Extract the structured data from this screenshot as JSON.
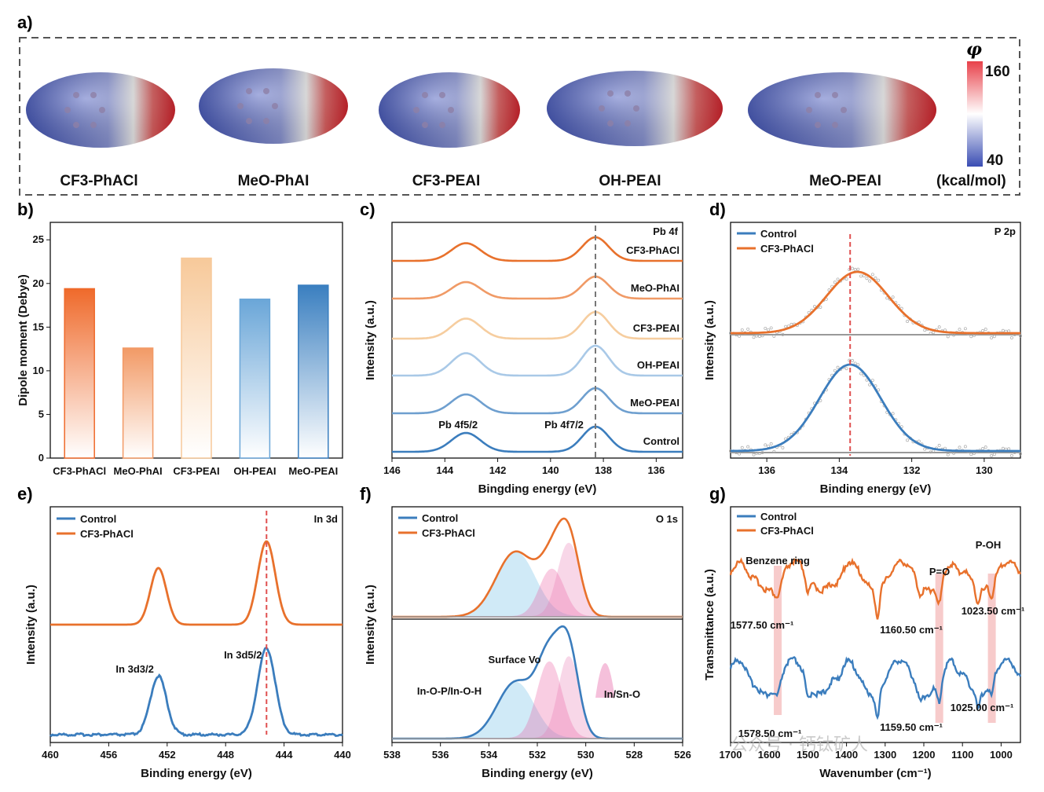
{
  "panel_labels": {
    "a": "a)",
    "b": "b)",
    "c": "c)",
    "d": "d)",
    "e": "e)",
    "f": "f)",
    "g": "g)"
  },
  "panel_a": {
    "molecules": [
      "CF3-PhACl",
      "MeO-PhAI",
      "CF3-PEAI",
      "OH-PEAI",
      "MeO-PEAI"
    ],
    "colorbar": {
      "symbol": "φ",
      "max": "160",
      "min": "40",
      "unit": "(kcal/mol)",
      "colors": [
        "#e8414a",
        "#ffffff",
        "#3a4db3"
      ]
    }
  },
  "watermark": "公众号 · 钙钛矿人",
  "chart_data": [
    {
      "id": "b",
      "type": "bar",
      "categories": [
        "CF3-PhACl",
        "MeO-PhAI",
        "CF3-PEAI",
        "OH-PEAI",
        "MeO-PEAI"
      ],
      "values": [
        19.4,
        12.6,
        22.9,
        18.2,
        19.8
      ],
      "colors": [
        "#ef6a2b",
        "#f29a66",
        "#f7c99a",
        "#6aa6d8",
        "#3a7fc0"
      ],
      "xlabel": "",
      "ylabel": "Dipole moment (Debye)",
      "ylim": [
        0,
        27
      ],
      "yticks": [
        "0",
        "5",
        "10",
        "15",
        "20",
        "25"
      ]
    },
    {
      "id": "c",
      "type": "line",
      "title": "Pb 4f",
      "xlabel": "Bingding energy (eV)",
      "ylabel": "Intensity (a.u.)",
      "xlim": [
        146,
        135
      ],
      "xticks": [
        "146",
        "144",
        "142",
        "140",
        "138",
        "136"
      ],
      "reference_line_x": 138.3,
      "peaks": [
        {
          "position": 143.2,
          "label": "Pb 4f5/2"
        },
        {
          "position": 138.3,
          "label": "Pb 4f7/2"
        }
      ],
      "series": [
        {
          "name": "CF3-PhACl",
          "color": "#e8712c"
        },
        {
          "name": "MeO-PhAI",
          "color": "#f09a66"
        },
        {
          "name": "CF3-PEAI",
          "color": "#f6cd9f"
        },
        {
          "name": "OH-PEAI",
          "color": "#a9c9e7"
        },
        {
          "name": "MeO-PEAI",
          "color": "#6e9fcf"
        },
        {
          "name": "Control",
          "color": "#3b7dbd"
        }
      ]
    },
    {
      "id": "d",
      "type": "line",
      "title": "P 2p",
      "xlabel": "Binding energy (eV)",
      "ylabel": "Intensity (a.u.)",
      "xlim": [
        137,
        129
      ],
      "xticks": [
        "136",
        "134",
        "132",
        "130"
      ],
      "reference_line_x": 133.7,
      "series": [
        {
          "name": "Control",
          "color": "#3b7dbd",
          "peak": 133.7
        },
        {
          "name": "CF3-PhACl",
          "color": "#e8712c",
          "peak": 133.5
        }
      ]
    },
    {
      "id": "e",
      "type": "line",
      "title": "In 3d",
      "xlabel": "Binding energy (eV)",
      "ylabel": "Intensity (a.u.)",
      "xlim": [
        460,
        440
      ],
      "xticks": [
        "460",
        "456",
        "452",
        "448",
        "444",
        "440"
      ],
      "reference_line_x": 445.2,
      "peaks": [
        {
          "position": 452.6,
          "label": "In 3d3/2"
        },
        {
          "position": 445.2,
          "label": "In 3d5/2"
        }
      ],
      "series": [
        {
          "name": "Control",
          "color": "#3b7dbd"
        },
        {
          "name": "CF3-PhACl",
          "color": "#e8712c"
        }
      ]
    },
    {
      "id": "f",
      "type": "line",
      "title": "O 1s",
      "xlabel": "Binding energy (eV)",
      "ylabel": "Intensity (a.u.)",
      "xlim": [
        538,
        526
      ],
      "xticks": [
        "538",
        "536",
        "534",
        "532",
        "530",
        "528",
        "526"
      ],
      "components": [
        {
          "name": "In-O-P/In-O-H",
          "center": 532.9,
          "color": "#5ab5e6"
        },
        {
          "name": "Surface Vo",
          "center": 531.5,
          "color": "#ea4f98"
        },
        {
          "name": "In/Sn-O",
          "center": 530.7,
          "color": "#e874b0"
        }
      ],
      "series": [
        {
          "name": "Control",
          "color": "#3b7dbd"
        },
        {
          "name": "CF3-PhACl",
          "color": "#e8712c"
        }
      ]
    },
    {
      "id": "g",
      "type": "line",
      "xlabel": "Wavenumber (cm⁻¹)",
      "ylabel": "Transmittance (a.u.)",
      "xlim": [
        1700,
        950
      ],
      "xticks": [
        "1700",
        "1600",
        "1500",
        "1400",
        "1300",
        "1200",
        "1100",
        "1000"
      ],
      "bands": [
        {
          "name": "Benzene ring",
          "center": 1578
        },
        {
          "name": "P=O",
          "center": 1160
        },
        {
          "name": "P-OH",
          "center": 1024
        }
      ],
      "annotations": [
        "1577.50 cm⁻¹",
        "1160.50 cm⁻¹",
        "1023.50 cm⁻¹",
        "1578.50 cm⁻¹",
        "1159.50 cm⁻¹",
        "1025.00 cm⁻¹"
      ],
      "series": [
        {
          "name": "Control",
          "color": "#3b7dbd"
        },
        {
          "name": "CF3-PhACl",
          "color": "#e8712c"
        }
      ]
    }
  ]
}
